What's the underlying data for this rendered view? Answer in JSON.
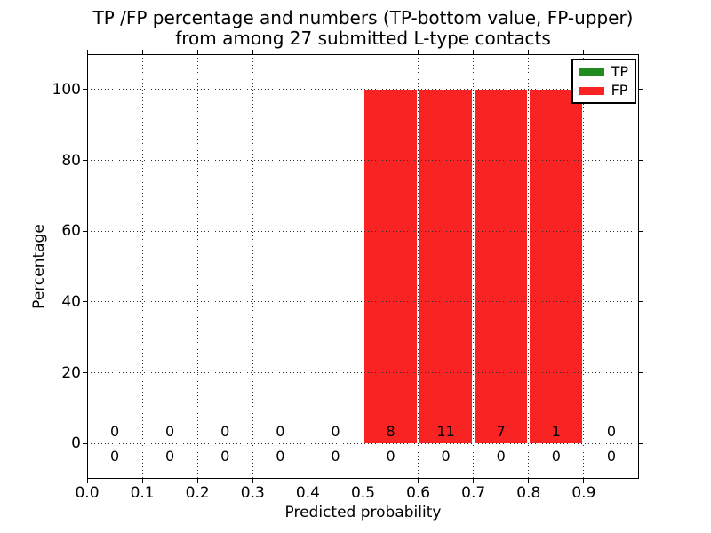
{
  "figure": {
    "title_line1": "TP /FP percentage and numbers (TP-bottom value, FP-upper)",
    "title_line2": "from among 27 submitted L-type contacts"
  },
  "chart_data": {
    "type": "bar",
    "title": "TP /FP percentage and numbers (TP-bottom value, FP-upper) from among 27 submitted L-type contacts",
    "xlabel": "Predicted probability",
    "ylabel": "Percentage",
    "xlim": [
      0.0,
      1.0
    ],
    "ylim": [
      -10,
      110
    ],
    "grid": true,
    "legend_position": "upper right",
    "total_submitted_contacts": 27,
    "x_tick_values": [
      0.0,
      0.1,
      0.2,
      0.3,
      0.4,
      0.5,
      0.6,
      0.7,
      0.8,
      0.9
    ],
    "x_tick_labels": [
      "0.0",
      "0.1",
      "0.2",
      "0.3",
      "0.4",
      "0.5",
      "0.6",
      "0.7",
      "0.8",
      "0.9"
    ],
    "y_tick_values": [
      0,
      20,
      40,
      60,
      80,
      100
    ],
    "y_tick_labels": [
      "0",
      "20",
      "40",
      "60",
      "80",
      "100"
    ],
    "bin_width": 0.1,
    "bin_centers": [
      0.05,
      0.15,
      0.25,
      0.35,
      0.45,
      0.55,
      0.65,
      0.75,
      0.85,
      0.95
    ],
    "series": [
      {
        "name": "TP",
        "color": "#1e8c1e",
        "percent": [
          0,
          0,
          0,
          0,
          0,
          0,
          0,
          0,
          0,
          0
        ],
        "counts": [
          0,
          0,
          0,
          0,
          0,
          0,
          0,
          0,
          0,
          0
        ],
        "count_label_row": "bottom"
      },
      {
        "name": "FP",
        "color": "#fa2323",
        "percent": [
          0,
          0,
          0,
          0,
          0,
          100,
          100,
          100,
          100,
          0
        ],
        "counts": [
          0,
          0,
          0,
          0,
          0,
          8,
          11,
          7,
          1,
          0
        ],
        "count_label_row": "upper"
      }
    ]
  }
}
